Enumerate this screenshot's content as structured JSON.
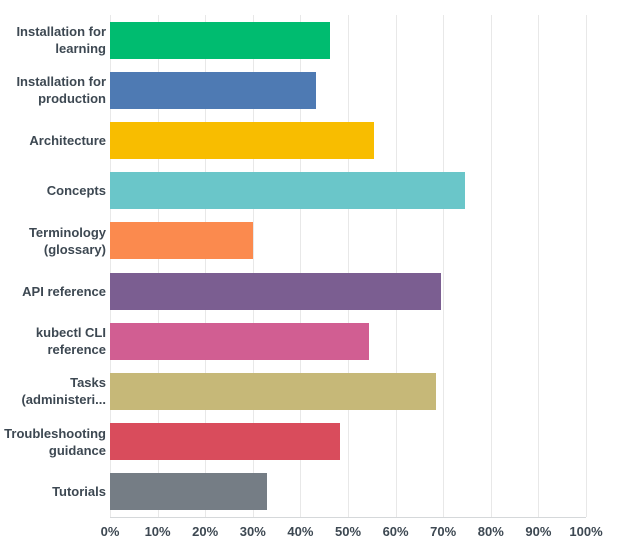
{
  "chart_data": {
    "type": "bar",
    "orientation": "horizontal",
    "title": "",
    "xlabel": "",
    "ylabel": "",
    "grid": "vertical",
    "xlim": [
      0,
      100
    ],
    "unit": "%",
    "x_ticks": [
      "0%",
      "10%",
      "20%",
      "30%",
      "40%",
      "50%",
      "60%",
      "70%",
      "80%",
      "90%",
      "100%"
    ],
    "categories": [
      "Installation for learning",
      "Installation for production",
      "Architecture",
      "Concepts",
      "Terminology (glossary)",
      "API reference",
      "kubectl CLI reference",
      "Tasks (administeri...",
      "Troubleshooting guidance",
      "Tutorials"
    ],
    "values": [
      46.2,
      43.3,
      55.4,
      74.6,
      30.1,
      69.5,
      54.4,
      68.5,
      48.3,
      33.0
    ],
    "colors": [
      "#00bc70",
      "#4e7ab3",
      "#f8bd00",
      "#6ac6c9",
      "#fb8a4e",
      "#7b5e91",
      "#d15e92",
      "#c6b878",
      "#d94c5c",
      "#757d85"
    ],
    "style": {
      "gridline_color": "#e8e8e8",
      "axis_line_color": "#d5d8da",
      "label_color": "#3d4852"
    }
  }
}
